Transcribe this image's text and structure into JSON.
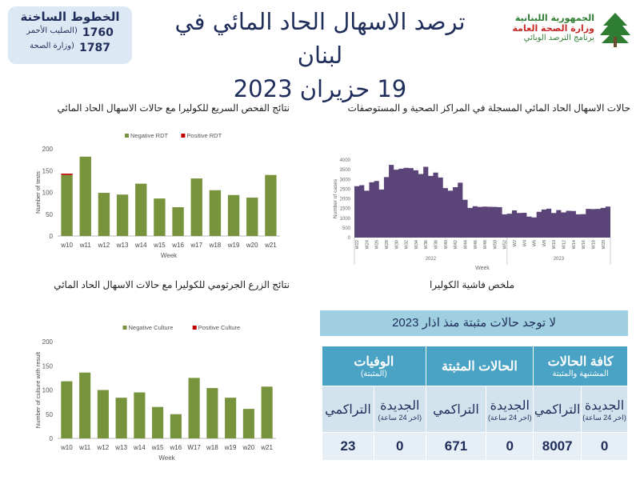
{
  "hotline": {
    "title": "الخطوط الساخنة",
    "rows": [
      {
        "number": "1760",
        "label": "(الصليب الأحمر"
      },
      {
        "number": "1787",
        "label": "(وزارة الصحة"
      }
    ]
  },
  "header": {
    "title_line1": "ترصد الاسهال الحاد المائي في لبنان",
    "title_line2": "19 حزيران 2023"
  },
  "logo": {
    "line1": "الجمهورية اللبنانية",
    "line2": "وزارة الصحة العامة",
    "line3": "برنامج الترصد الوبائي",
    "icon": "cedar-tree-icon"
  },
  "sections": {
    "cases_title": "حالات الاسهال الحاد المائي المسجلة في المراكز الصحية و المستوصفات",
    "rdt_title": "نتائج الفحص السريع للكوليرا مع حالات الاسهال الحاد المائي",
    "culture_title": "نتائج الزرع الجرثومي للكوليرا مع حالات الاسهال الحاد المائي",
    "summary_title": "ملخص فاشية الكوليرا"
  },
  "colors": {
    "green": "#77933c",
    "red": "#c00000",
    "purple": "#5b4478",
    "table_header": "#4aa3c4",
    "banner": "#9fcfe0"
  },
  "chart_data": [
    {
      "type": "bar",
      "stacked": true,
      "categories": [
        "w10",
        "w11",
        "w12",
        "w13",
        "w14",
        "w15",
        "w16",
        "w17",
        "w18",
        "w19",
        "w20",
        "w21"
      ],
      "series": [
        {
          "name": "Negative RDT",
          "values": [
            140,
            182,
            99,
            95,
            120,
            86,
            66,
            132,
            105,
            94,
            88,
            140
          ]
        },
        {
          "name": "Positive RDT",
          "values": [
            3,
            0,
            0,
            0,
            0,
            0,
            0,
            0,
            0,
            0,
            0,
            0
          ]
        }
      ],
      "xlabel": "Week",
      "ylabel": "Number of tests",
      "ylim": [
        0,
        200
      ],
      "yticks": [
        0,
        50,
        100,
        150,
        200
      ],
      "legend": "top"
    },
    {
      "type": "bar",
      "stacked": true,
      "categories": [
        "w10",
        "w11",
        "w12",
        "w13",
        "w14",
        "w15",
        "w16",
        "W17",
        "w18",
        "w19",
        "w20",
        "w21"
      ],
      "series": [
        {
          "name": "Negative Culture",
          "values": [
            118,
            136,
            100,
            84,
            95,
            65,
            50,
            125,
            104,
            84,
            61,
            107
          ]
        },
        {
          "name": "Positive Culture",
          "values": [
            0,
            0,
            0,
            0,
            0,
            0,
            0,
            0,
            0,
            0,
            0,
            0
          ]
        }
      ],
      "xlabel": "Week",
      "ylabel": "Number of culture with result",
      "ylim": [
        0,
        200
      ],
      "yticks": [
        0,
        50,
        100,
        150,
        200
      ],
      "legend": "top"
    },
    {
      "type": "area",
      "step": true,
      "groups": [
        {
          "year": "2022",
          "weeks": [
            "W22",
            "W23",
            "W24",
            "W25",
            "W26",
            "W27",
            "W28",
            "W29",
            "W30",
            "W31",
            "W32",
            "W33",
            "W34",
            "W35",
            "W36",
            "W37",
            "W38",
            "W39",
            "W40",
            "W41",
            "W42",
            "W43",
            "W44",
            "W45",
            "W46",
            "W47",
            "W48",
            "W49",
            "W50",
            "W51",
            "W52"
          ],
          "values": [
            2650,
            2700,
            2420,
            2850,
            2920,
            2480,
            3120,
            3750,
            3500,
            3550,
            3600,
            3580,
            3470,
            3280,
            3650,
            3180,
            3350,
            3100,
            2550,
            2420,
            2600,
            2830,
            1950,
            1530,
            1620,
            1580,
            1600,
            1590,
            1580,
            1570,
            1200
          ]
        },
        {
          "year": "2023",
          "weeks": [
            "W1",
            "W2",
            "W3",
            "W4",
            "W5",
            "W6",
            "W7",
            "W8",
            "W9",
            "W10",
            "W11",
            "W12",
            "W13",
            "W14",
            "W15",
            "W16",
            "W17",
            "W18",
            "W19",
            "W20",
            "W21"
          ],
          "values": [
            1230,
            1400,
            1270,
            1280,
            1080,
            1040,
            1330,
            1450,
            1490,
            1270,
            1420,
            1300,
            1380,
            1370,
            1200,
            1210,
            1480,
            1470,
            1480,
            1530,
            1600
          ]
        }
      ],
      "xlabel": "Week",
      "ylabel": "Number of cases",
      "ylim": [
        0,
        4000
      ],
      "yticks": [
        0,
        500,
        1000,
        1500,
        2000,
        2500,
        3000,
        3500,
        4000
      ]
    }
  ],
  "summary": {
    "banner": "لا توجد حالات مثبتة منذ اذار 2023",
    "groups": [
      {
        "title": "كافة الحالات",
        "sub": "المشتبهة والمثبتة"
      },
      {
        "title": "الحالات المثبتة",
        "sub": ""
      },
      {
        "title": "الوفيات",
        "sub": "(المثبتة)"
      }
    ],
    "cols": [
      {
        "label": "الجديدة",
        "sub": "(اخر 24 ساعة)",
        "value": "0"
      },
      {
        "label": "التراكمي",
        "sub": "",
        "value": "8007"
      },
      {
        "label": "الجديدة",
        "sub": "(اخر 24 ساعة)",
        "value": "0"
      },
      {
        "label": "التراكمي",
        "sub": "",
        "value": "671"
      },
      {
        "label": "الجديدة",
        "sub": "(اخر 24 ساعة)",
        "value": "0"
      },
      {
        "label": "التراكمي",
        "sub": "",
        "value": "23"
      }
    ]
  }
}
